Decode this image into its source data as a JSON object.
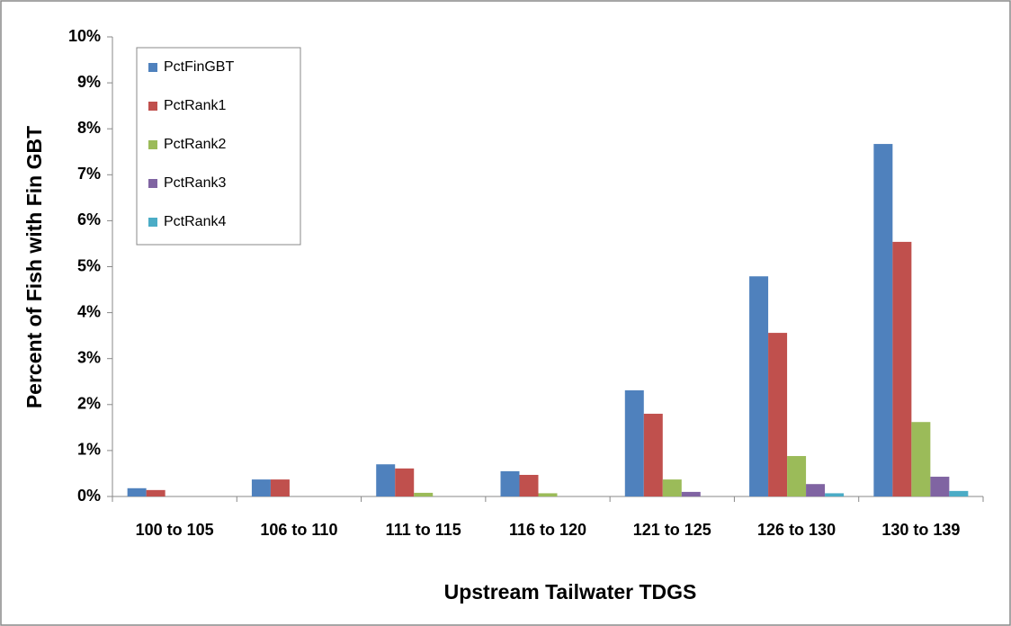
{
  "chart_data": {
    "type": "bar",
    "x_label": "Upstream Tailwater TDGS",
    "y_label": "Percent of Fish with Fin GBT",
    "categories": [
      "100 to 105",
      "106 to 110",
      "111 to 115",
      "116 to 120",
      "121 to 125",
      "126 to 130",
      "130 to 139"
    ],
    "series": [
      {
        "name": "PctFinGBT",
        "color": "#4f81bd",
        "values": [
          0.18,
          0.37,
          0.7,
          0.55,
          2.31,
          4.79,
          7.67
        ]
      },
      {
        "name": "PctRank1",
        "color": "#c0504d",
        "values": [
          0.14,
          0.37,
          0.61,
          0.47,
          1.8,
          3.56,
          5.54
        ]
      },
      {
        "name": "PctRank2",
        "color": "#9bbb59",
        "values": [
          0,
          0,
          0.08,
          0.07,
          0.37,
          0.88,
          1.62
        ]
      },
      {
        "name": "PctRank3",
        "color": "#8064a2",
        "values": [
          0,
          0,
          0,
          0,
          0.1,
          0.27,
          0.43
        ]
      },
      {
        "name": "PctRank4",
        "color": "#4bacc6",
        "values": [
          0,
          0,
          0,
          0,
          0,
          0.07,
          0.12
        ]
      }
    ],
    "ylim": [
      0,
      10
    ],
    "yticks": [
      {
        "value": 0,
        "label": "0%"
      },
      {
        "value": 1,
        "label": "1%"
      },
      {
        "value": 2,
        "label": "2%"
      },
      {
        "value": 3,
        "label": "3%"
      },
      {
        "value": 4,
        "label": "4%"
      },
      {
        "value": 5,
        "label": "5%"
      },
      {
        "value": 6,
        "label": "6%"
      },
      {
        "value": 7,
        "label": "7%"
      },
      {
        "value": 8,
        "label": "8%"
      },
      {
        "value": 9,
        "label": "9%"
      },
      {
        "value": 10,
        "label": "10%"
      }
    ],
    "legend_position": "upper left",
    "grid": false
  }
}
